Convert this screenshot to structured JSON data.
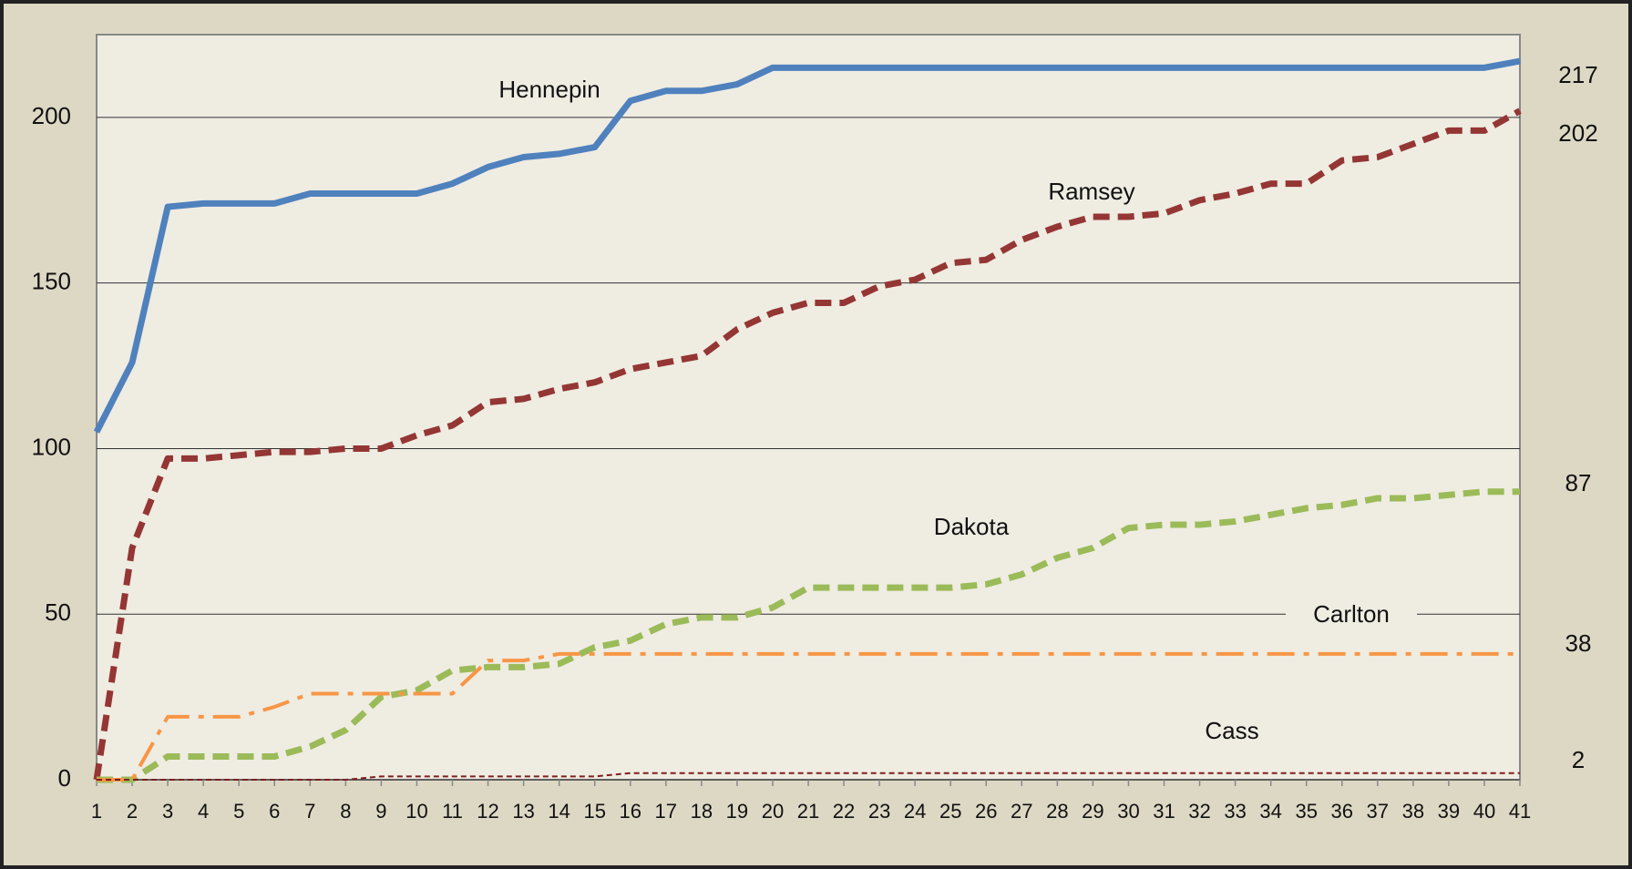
{
  "chart_data": {
    "type": "line",
    "x": [
      1,
      2,
      3,
      4,
      5,
      6,
      7,
      8,
      9,
      10,
      11,
      12,
      13,
      14,
      15,
      16,
      17,
      18,
      19,
      20,
      21,
      22,
      23,
      24,
      25,
      26,
      27,
      28,
      29,
      30,
      31,
      32,
      33,
      34,
      35,
      36,
      37,
      38,
      39,
      40,
      41
    ],
    "xlim": [
      1,
      41
    ],
    "xticks": [
      1,
      2,
      3,
      4,
      5,
      6,
      7,
      8,
      9,
      10,
      11,
      12,
      13,
      14,
      15,
      16,
      17,
      18,
      19,
      20,
      21,
      22,
      23,
      24,
      25,
      26,
      27,
      28,
      29,
      30,
      31,
      32,
      33,
      34,
      35,
      36,
      37,
      38,
      39,
      40,
      41
    ],
    "ylim": [
      0,
      225
    ],
    "yticks": [
      0,
      50,
      100,
      150,
      200
    ],
    "grid": true,
    "series": [
      {
        "name": "Hennepin",
        "color": "#4f81bd",
        "dash": "solid",
        "values": [
          105,
          126,
          173,
          174,
          174,
          174,
          177,
          177,
          177,
          177,
          180,
          185,
          188,
          189,
          191,
          205,
          208,
          208,
          210,
          215,
          215,
          215,
          215,
          215,
          215,
          215,
          215,
          215,
          215,
          215,
          215,
          215,
          215,
          215,
          215,
          215,
          215,
          215,
          215,
          215,
          217
        ]
      },
      {
        "name": "Ramsey",
        "color": "#943634",
        "dash": "dashed",
        "values": [
          0,
          70,
          97,
          97,
          98,
          99,
          99,
          100,
          100,
          104,
          107,
          114,
          115,
          118,
          120,
          124,
          126,
          128,
          136,
          141,
          144,
          144,
          149,
          151,
          156,
          157,
          163,
          167,
          170,
          170,
          171,
          175,
          177,
          180,
          180,
          187,
          188,
          192,
          196,
          196,
          202
        ]
      },
      {
        "name": "Dakota",
        "color": "#9bbb59",
        "dash": "dashed",
        "values": [
          0,
          0,
          7,
          7,
          7,
          7,
          10,
          15,
          25,
          27,
          33,
          34,
          34,
          35,
          40,
          42,
          47,
          49,
          49,
          52,
          58,
          58,
          58,
          58,
          58,
          59,
          62,
          67,
          70,
          76,
          77,
          77,
          78,
          80,
          82,
          83,
          85,
          85,
          86,
          87,
          87
        ]
      },
      {
        "name": "Carlton",
        "color": "#f79646",
        "dash": "dashdot",
        "values": [
          0,
          0,
          19,
          19,
          19,
          22,
          26,
          26,
          26,
          26,
          26,
          36,
          36,
          38,
          38,
          38,
          38,
          38,
          38,
          38,
          38,
          38,
          38,
          38,
          38,
          38,
          38,
          38,
          38,
          38,
          38,
          38,
          38,
          38,
          38,
          38,
          38,
          38,
          38,
          38,
          38
        ]
      },
      {
        "name": "Cass",
        "color": "#7f1f1f",
        "dash": "thin",
        "values": [
          0,
          0,
          0,
          0,
          0,
          0,
          0,
          0,
          1,
          1,
          1,
          1,
          1,
          1,
          1,
          2,
          2,
          2,
          2,
          2,
          2,
          2,
          2,
          2,
          2,
          2,
          2,
          2,
          2,
          2,
          2,
          2,
          2,
          2,
          2,
          2,
          2,
          2,
          2,
          2,
          2
        ]
      }
    ]
  }
}
